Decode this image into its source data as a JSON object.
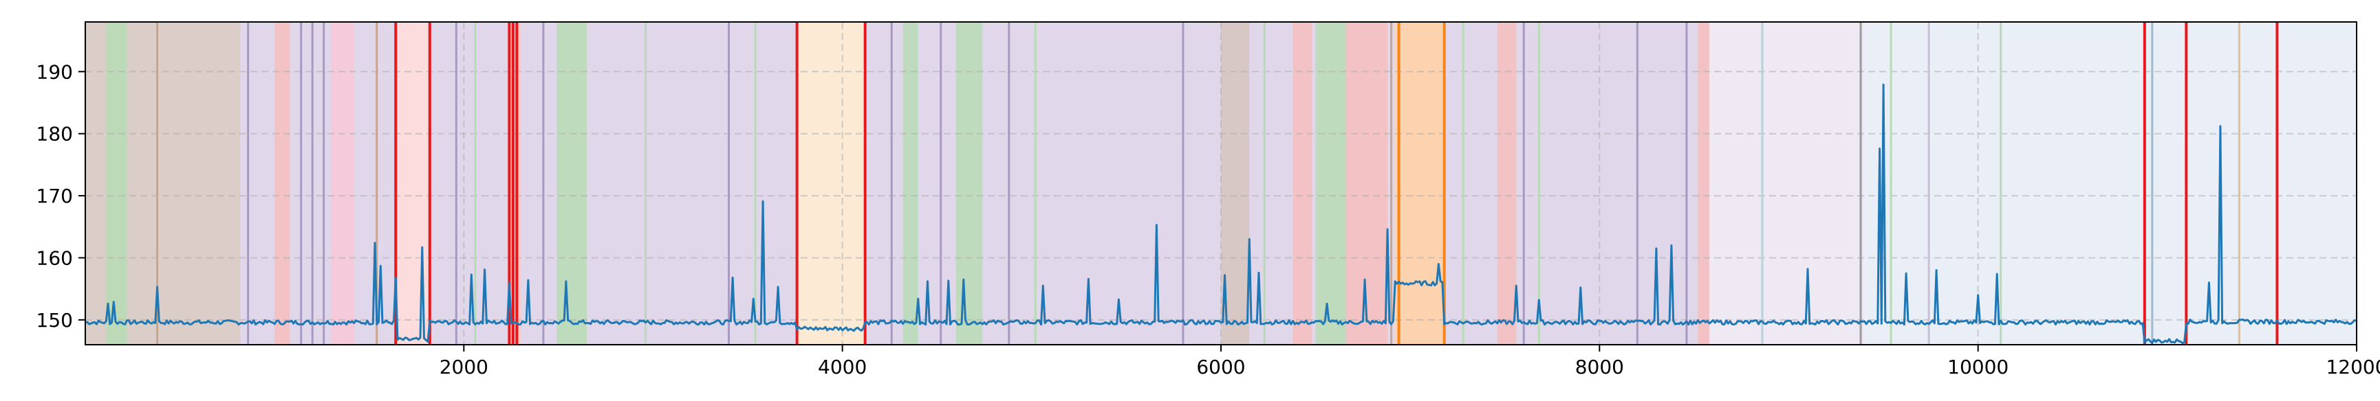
{
  "chart_data": {
    "type": "line",
    "title": "",
    "xlabel": "",
    "ylabel": "",
    "xlim": [
      0,
      12000
    ],
    "ylim": [
      146,
      198
    ],
    "x_ticks": [
      2000,
      4000,
      6000,
      8000,
      10000,
      12000
    ],
    "y_ticks": [
      150,
      160,
      170,
      180,
      190
    ],
    "grid": true,
    "series": [
      {
        "color": "#1f77b4",
        "baseline_segments": [
          {
            "x": [
              0,
              1640
            ],
            "y": 149.6
          },
          {
            "x": [
              1640,
              1820
            ],
            "y": 146.8
          },
          {
            "x": [
              1820,
              3760
            ],
            "y": 149.6
          },
          {
            "x": [
              3760,
              4120
            ],
            "y": 148.6
          },
          {
            "x": [
              4120,
              6920
            ],
            "y": 149.6
          },
          {
            "x": [
              6920,
              7180
            ],
            "y": 155.9
          },
          {
            "x": [
              7180,
              10880
            ],
            "y": 149.6
          },
          {
            "x": [
              10880,
              11100
            ],
            "y": 146.6
          },
          {
            "x": [
              11100,
              12000
            ],
            "y": 149.7
          }
        ],
        "spikes": [
          {
            "x": 120,
            "y": 152.6
          },
          {
            "x": 150,
            "y": 152.9
          },
          {
            "x": 380,
            "y": 155.3
          },
          {
            "x": 1530,
            "y": 162.4
          },
          {
            "x": 1560,
            "y": 158.7
          },
          {
            "x": 1640,
            "y": 156.8
          },
          {
            "x": 1780,
            "y": 161.7
          },
          {
            "x": 2040,
            "y": 157.3
          },
          {
            "x": 2110,
            "y": 158.1
          },
          {
            "x": 2240,
            "y": 156.0
          },
          {
            "x": 2340,
            "y": 156.4
          },
          {
            "x": 2540,
            "y": 156.2
          },
          {
            "x": 3420,
            "y": 156.8
          },
          {
            "x": 3530,
            "y": 153.4
          },
          {
            "x": 3580,
            "y": 169.1
          },
          {
            "x": 3660,
            "y": 155.3
          },
          {
            "x": 4400,
            "y": 153.4
          },
          {
            "x": 4450,
            "y": 156.2
          },
          {
            "x": 4560,
            "y": 156.3
          },
          {
            "x": 4640,
            "y": 156.5
          },
          {
            "x": 5060,
            "y": 155.5
          },
          {
            "x": 5300,
            "y": 156.6
          },
          {
            "x": 5460,
            "y": 153.3
          },
          {
            "x": 5660,
            "y": 165.3
          },
          {
            "x": 6020,
            "y": 157.2
          },
          {
            "x": 6150,
            "y": 163.0
          },
          {
            "x": 6200,
            "y": 157.6
          },
          {
            "x": 6560,
            "y": 152.6
          },
          {
            "x": 6760,
            "y": 156.5
          },
          {
            "x": 6880,
            "y": 164.6
          },
          {
            "x": 7150,
            "y": 159.0
          },
          {
            "x": 7560,
            "y": 155.5
          },
          {
            "x": 7680,
            "y": 153.2
          },
          {
            "x": 7900,
            "y": 155.2
          },
          {
            "x": 8300,
            "y": 161.5
          },
          {
            "x": 8380,
            "y": 162.0
          },
          {
            "x": 9100,
            "y": 158.2
          },
          {
            "x": 9480,
            "y": 177.6
          },
          {
            "x": 9500,
            "y": 187.9
          },
          {
            "x": 9620,
            "y": 157.5
          },
          {
            "x": 9780,
            "y": 158.0
          },
          {
            "x": 10000,
            "y": 154.0
          },
          {
            "x": 10100,
            "y": 157.4
          },
          {
            "x": 11220,
            "y": 156.0
          },
          {
            "x": 11280,
            "y": 181.2
          }
        ]
      }
    ],
    "background_spans": [
      {
        "x0": 0,
        "x1": 820,
        "color": "#d5c4be"
      },
      {
        "x0": 110,
        "x1": 220,
        "color": "#b7dcb5"
      },
      {
        "x0": 820,
        "x1": 1640,
        "color": "#dcd0e8"
      },
      {
        "x0": 1000,
        "x1": 1080,
        "color": "#f5bebe"
      },
      {
        "x0": 1300,
        "x1": 1420,
        "color": "#f8c8d8"
      },
      {
        "x0": 1640,
        "x1": 1820,
        "color": "#fcd6d6"
      },
      {
        "x0": 1820,
        "x1": 2240,
        "color": "#dcd0e8"
      },
      {
        "x0": 2240,
        "x1": 2300,
        "color": "#f5bebe"
      },
      {
        "x0": 2300,
        "x1": 3760,
        "color": "#dcd0e8"
      },
      {
        "x0": 2490,
        "x1": 2650,
        "color": "#b7dcb5"
      },
      {
        "x0": 3760,
        "x1": 4120,
        "color": "#fde6cc"
      },
      {
        "x0": 4120,
        "x1": 6920,
        "color": "#dcd0e8"
      },
      {
        "x0": 4320,
        "x1": 4400,
        "color": "#b7dcb5"
      },
      {
        "x0": 4600,
        "x1": 4740,
        "color": "#b7dcb5"
      },
      {
        "x0": 6000,
        "x1": 6150,
        "color": "#d5c4be"
      },
      {
        "x0": 6380,
        "x1": 6480,
        "color": "#f5bebe"
      },
      {
        "x0": 6500,
        "x1": 6660,
        "color": "#b7dcb5"
      },
      {
        "x0": 6660,
        "x1": 6880,
        "color": "#f5bebe"
      },
      {
        "x0": 6920,
        "x1": 7180,
        "color": "#fdcaa0"
      },
      {
        "x0": 7180,
        "x1": 8580,
        "color": "#dcd0e8"
      },
      {
        "x0": 7460,
        "x1": 7560,
        "color": "#f5bebe"
      },
      {
        "x0": 8520,
        "x1": 8580,
        "color": "#f5bebe"
      },
      {
        "x0": 8580,
        "x1": 9400,
        "color": "#ece5f2"
      },
      {
        "x0": 9400,
        "x1": 10880,
        "color": "#e6ecf6"
      },
      {
        "x0": 10880,
        "x1": 11100,
        "color": "#e6ecf6"
      },
      {
        "x0": 11100,
        "x1": 12000,
        "color": "#e6ecf6"
      }
    ],
    "thin_lines": [
      {
        "x": 380,
        "color": "#c8a48c"
      },
      {
        "x": 860,
        "color": "#a999c2"
      },
      {
        "x": 1140,
        "color": "#a999c2"
      },
      {
        "x": 1200,
        "color": "#a999c2"
      },
      {
        "x": 1260,
        "color": "#a999c2"
      },
      {
        "x": 1540,
        "color": "#c8a48c"
      },
      {
        "x": 1960,
        "color": "#a999c2"
      },
      {
        "x": 2060,
        "color": "#b7dcb5"
      },
      {
        "x": 2420,
        "color": "#a999c2"
      },
      {
        "x": 2960,
        "color": "#b7dcb5"
      },
      {
        "x": 3400,
        "color": "#a999c2"
      },
      {
        "x": 3540,
        "color": "#b7dcb5"
      },
      {
        "x": 4260,
        "color": "#a999c2"
      },
      {
        "x": 4520,
        "color": "#a999c2"
      },
      {
        "x": 4880,
        "color": "#a999c2"
      },
      {
        "x": 5020,
        "color": "#b7dcb5"
      },
      {
        "x": 5800,
        "color": "#a999c2"
      },
      {
        "x": 6230,
        "color": "#b7dcb5"
      },
      {
        "x": 6900,
        "color": "#c8a48c"
      },
      {
        "x": 7280,
        "color": "#b7dcb5"
      },
      {
        "x": 7600,
        "color": "#a999c2"
      },
      {
        "x": 7680,
        "color": "#b7dcb5"
      },
      {
        "x": 8200,
        "color": "#a999c2"
      },
      {
        "x": 8460,
        "color": "#a999c2"
      },
      {
        "x": 8860,
        "color": "#b8d0d8"
      },
      {
        "x": 9380,
        "color": "#9a9a9a"
      },
      {
        "x": 9540,
        "color": "#b7dcb5"
      },
      {
        "x": 9740,
        "color": "#c8c0d4"
      },
      {
        "x": 10120,
        "color": "#b7dcb5"
      },
      {
        "x": 10920,
        "color": "#9abccc"
      },
      {
        "x": 11380,
        "color": "#d8c0a8"
      }
    ],
    "red_lines": [
      1640,
      1820,
      2240,
      2260,
      2280,
      3760,
      4120,
      10880,
      11100,
      11580
    ],
    "orange_lines": [
      6940,
      7180
    ]
  }
}
